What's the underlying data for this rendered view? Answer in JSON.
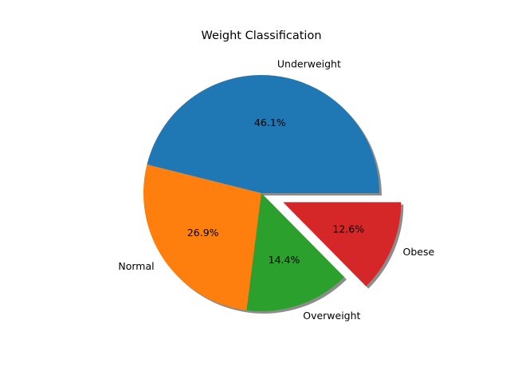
{
  "chart_data": {
    "type": "pie",
    "title": "Weight Classification",
    "categories": [
      "Underweight",
      "Normal",
      "Overweight",
      "Obese"
    ],
    "values": [
      46.1,
      26.9,
      14.4,
      12.6
    ],
    "value_labels": [
      "46.1%",
      "26.9%",
      "14.4%",
      "12.6%"
    ],
    "colors": [
      "#1f77b4",
      "#ff7f0e",
      "#2ca02c",
      "#d62728"
    ],
    "explode": [
      0,
      0,
      0,
      0.2
    ],
    "shadow": true,
    "start_angle_deg": 0,
    "direction": "counterclockwise",
    "legend": "none"
  }
}
